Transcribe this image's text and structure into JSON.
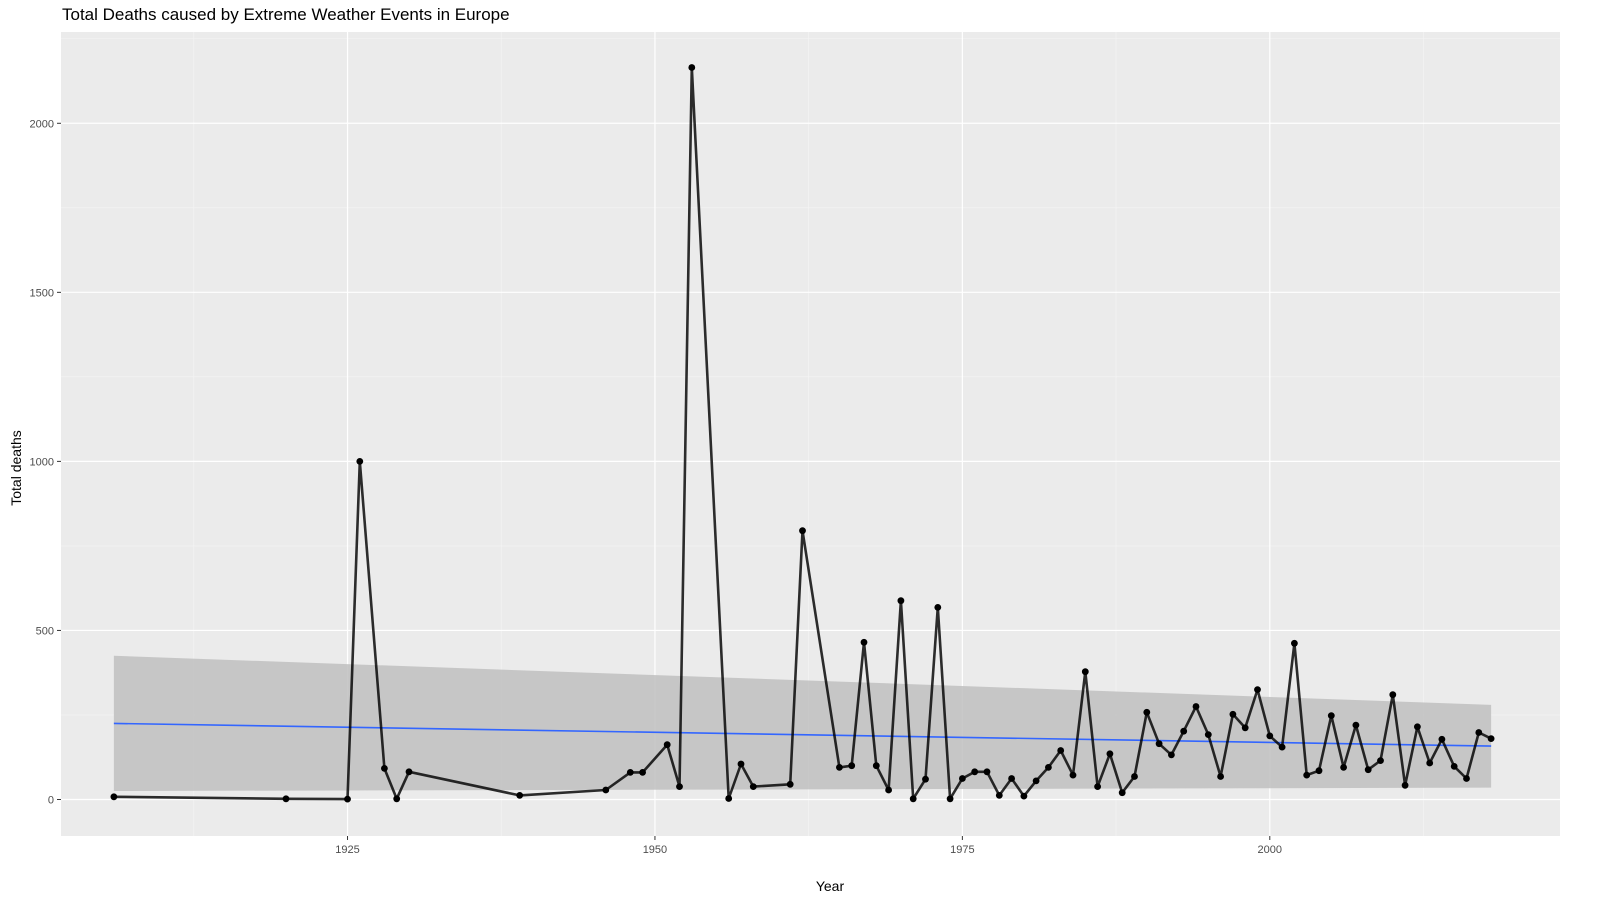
{
  "chart_data": {
    "type": "line",
    "title": "Total Deaths caused by Extreme Weather Events in Europe",
    "xlabel": "Year",
    "ylabel": "Total deaths",
    "xlim": [
      1901.7,
      2023.6
    ],
    "ylim": [
      -108,
      2270
    ],
    "x_ticks": [
      1925,
      1950,
      1975,
      2000
    ],
    "y_ticks": [
      0,
      500,
      1000,
      1500,
      2000
    ],
    "grid": true,
    "legend": "none",
    "colors": {
      "panel_background": "#ebebeb",
      "grid_major": "#ffffff",
      "grid_minor": "#f5f5f5",
      "series_line": "#000000",
      "trend_line": "#3366ff",
      "confidence_band": "#c0c0c0"
    },
    "series": [
      {
        "points": [
          [
            1906,
            8
          ],
          [
            1920,
            2
          ],
          [
            1925,
            1
          ],
          [
            1926,
            1000
          ],
          [
            1928,
            92
          ],
          [
            1929,
            2
          ],
          [
            1930,
            82
          ],
          [
            1939,
            12
          ],
          [
            1946,
            28
          ],
          [
            1948,
            80
          ],
          [
            1949,
            80
          ],
          [
            1951,
            162
          ],
          [
            1952,
            38
          ],
          [
            1953,
            2165
          ],
          [
            1956,
            3
          ],
          [
            1957,
            105
          ],
          [
            1958,
            38
          ],
          [
            1961,
            45
          ],
          [
            1962,
            795
          ],
          [
            1965,
            95
          ],
          [
            1966,
            100
          ],
          [
            1967,
            465
          ],
          [
            1968,
            100
          ],
          [
            1969,
            28
          ],
          [
            1970,
            588
          ],
          [
            1971,
            2
          ],
          [
            1972,
            60
          ],
          [
            1973,
            568
          ],
          [
            1974,
            2
          ],
          [
            1975,
            62
          ],
          [
            1976,
            82
          ],
          [
            1977,
            82
          ],
          [
            1978,
            12
          ],
          [
            1979,
            62
          ],
          [
            1980,
            10
          ],
          [
            1981,
            55
          ],
          [
            1982,
            95
          ],
          [
            1983,
            145
          ],
          [
            1984,
            72
          ],
          [
            1985,
            378
          ],
          [
            1986,
            38
          ],
          [
            1987,
            135
          ],
          [
            1988,
            20
          ],
          [
            1989,
            68
          ],
          [
            1990,
            258
          ],
          [
            1991,
            165
          ],
          [
            1992,
            132
          ],
          [
            1993,
            202
          ],
          [
            1994,
            275
          ],
          [
            1995,
            192
          ],
          [
            1996,
            68
          ],
          [
            1997,
            252
          ],
          [
            1998,
            212
          ],
          [
            1999,
            325
          ],
          [
            2000,
            188
          ],
          [
            2001,
            155
          ],
          [
            2002,
            462
          ],
          [
            2003,
            72
          ],
          [
            2004,
            85
          ],
          [
            2005,
            248
          ],
          [
            2006,
            95
          ],
          [
            2007,
            220
          ],
          [
            2008,
            88
          ],
          [
            2009,
            115
          ],
          [
            2010,
            310
          ],
          [
            2011,
            42
          ],
          [
            2012,
            215
          ],
          [
            2013,
            108
          ],
          [
            2014,
            178
          ],
          [
            2015,
            98
          ],
          [
            2016,
            62
          ],
          [
            2017,
            198
          ],
          [
            2018,
            180
          ]
        ]
      }
    ],
    "trend": {
      "method": "linear",
      "x": [
        1906,
        2018
      ],
      "y": [
        225,
        158
      ],
      "ci_lower": [
        25,
        35
      ],
      "ci_upper": [
        425,
        280
      ]
    }
  }
}
